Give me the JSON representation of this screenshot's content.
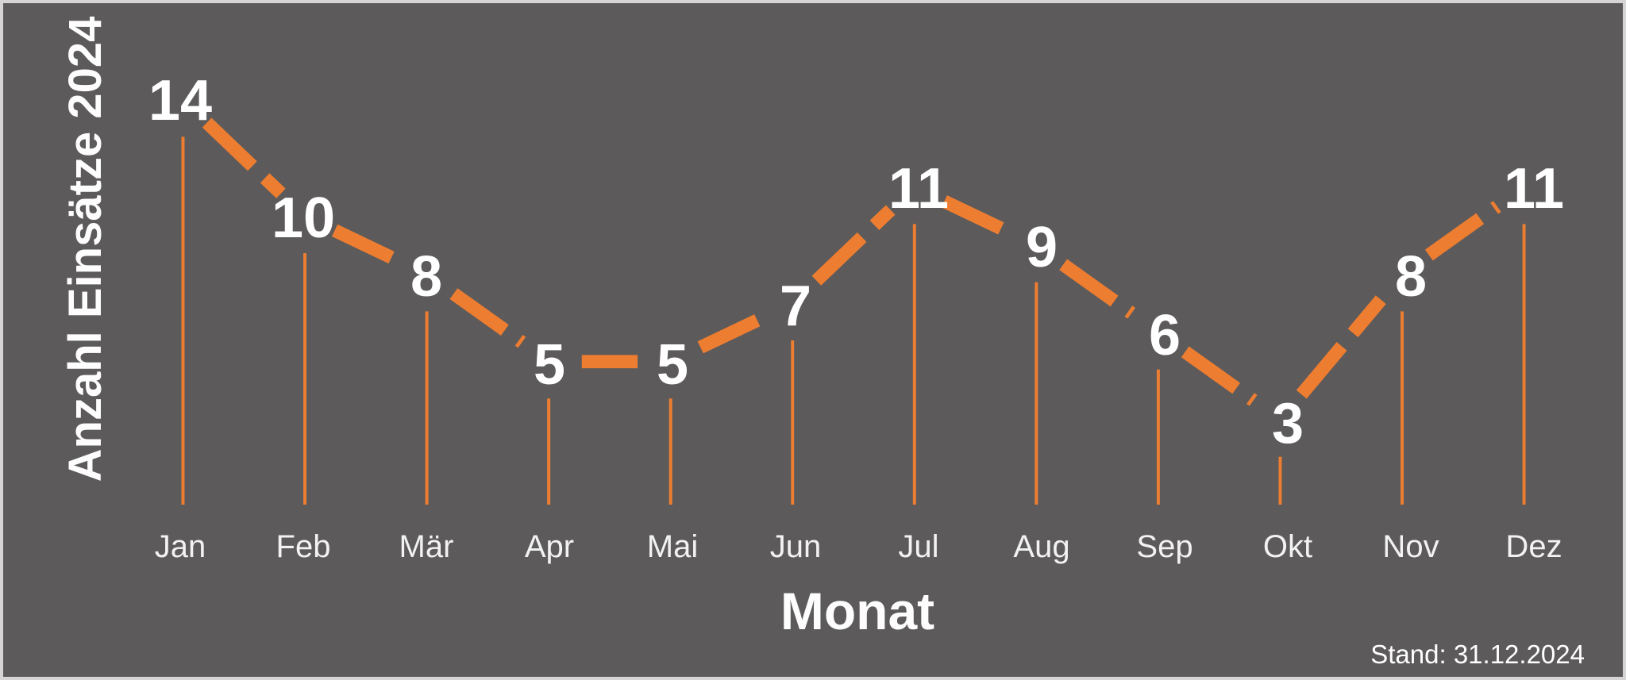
{
  "chart_data": {
    "type": "line",
    "categories": [
      "Jan",
      "Feb",
      "Mär",
      "Apr",
      "Mai",
      "Jun",
      "Jul",
      "Aug",
      "Sep",
      "Okt",
      "Nov",
      "Dez"
    ],
    "values": [
      14,
      10,
      8,
      5,
      5,
      7,
      11,
      9,
      6,
      3,
      8,
      11
    ],
    "title": "",
    "xlabel": "Monat",
    "ylabel": "Anzahl Einsätze 2024",
    "footnote": "Stand: 31.12.2024",
    "ylim": [
      0,
      14
    ],
    "grid": false,
    "legend": "none",
    "line_color": "#ED7D31",
    "drop_line_color": "#ED7D31",
    "data_label_color": "#FFFFFF",
    "background_color": "#5C5A5A",
    "line_style": "thick-dashed",
    "drop_lines": "to-baseline"
  }
}
